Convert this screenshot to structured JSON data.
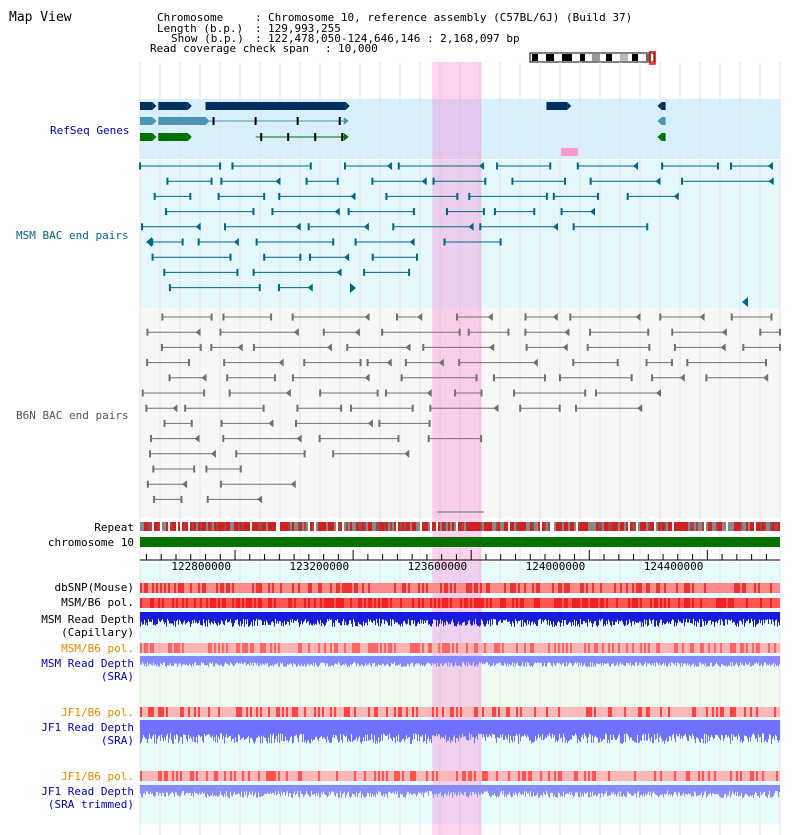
{
  "title": "Map View",
  "info": {
    "rows": [
      {
        "key": "Chromosome",
        "value": "Chromosome 10, reference assembly (C57BL/6J) (Build 37)"
      },
      {
        "key": "Length (b.p.)",
        "value": "129,993,255"
      },
      {
        "key": "Show (b.p.)",
        "value": "122,478,050-124,646,146 : 2,168,097 bp"
      },
      {
        "key": "Read coverage check span",
        "value": "10,000"
      }
    ]
  },
  "tracks": {
    "refseq": "RefSeq Genes",
    "msm_bac": "MSM BAC end pairs",
    "b6n_bac": "B6N BAC end pairs",
    "repeat": "Repeat",
    "chromosome": "chromosome 10",
    "dbsnp": "dbSNP(Mouse)",
    "msm_pol": "MSM/B6 pol.",
    "msm_depth_cap_1": "MSM Read Depth",
    "msm_depth_cap_2": "(Capillary)",
    "msm_pol_sra": "MSM/B6 pol.",
    "msm_depth_sra_1": "MSM Read Depth",
    "msm_depth_sra_2": "(SRA)",
    "jf1_pol": "JF1/B6 pol.",
    "jf1_depth_1": "JF1 Read Depth",
    "jf1_depth_2": "(SRA)",
    "jf1_pol_trim": "JF1/B6 pol.",
    "jf1_trim_1": "JF1 Read Depth",
    "jf1_trim_2": "(SRA trimmed)"
  },
  "axis": {
    "start_bp": 122478050,
    "end_bp": 124646146,
    "ticks": [
      "122800000",
      "123200000",
      "123600000",
      "124000000",
      "124400000"
    ],
    "tick_values": [
      122800000,
      123200000,
      123600000,
      124000000,
      124400000
    ],
    "highlight_bp": [
      123468000,
      123635000
    ]
  },
  "colors": {
    "refseq_dark": "#00305f",
    "refseq_mid": "#4e94b4",
    "refseq_green": "#007000",
    "msm": "#006688",
    "b6n": "#606060",
    "chromosome_bar": "#007000",
    "highlight": "#ff66cc",
    "snp": "#ff5050",
    "depth_dark": "#0000dd",
    "depth_light": "#7777ff",
    "label_blue": "#0000bb",
    "label_orange": "#ee8800",
    "label_teal": "#006688",
    "label_gray": "#555555"
  },
  "refseq_genes": [
    {
      "row": 0,
      "style": "dark",
      "start": 122478050,
      "end": 122520000,
      "dir": "+"
    },
    {
      "row": 0,
      "style": "dark",
      "start": 122540000,
      "end": 122640000,
      "dir": "+"
    },
    {
      "row": 0,
      "style": "dark",
      "start": 122700000,
      "end": 123175000,
      "dir": "+"
    },
    {
      "row": 0,
      "style": "dark",
      "start": 123855000,
      "end": 123925000,
      "dir": "+"
    },
    {
      "row": 0,
      "style": "dark",
      "start": 124245000,
      "end": 124258000,
      "dir": "-"
    },
    {
      "row": 1,
      "style": "mid",
      "start": 122478050,
      "end": 122520000,
      "dir": "+"
    },
    {
      "row": 1,
      "style": "mid",
      "start": 122540000,
      "end": 122700000,
      "dir": "+"
    },
    {
      "row": 1,
      "style": "line-mid",
      "start": 122700000,
      "end": 123175000,
      "dir": "+"
    },
    {
      "row": 1,
      "style": "mid",
      "start": 124245000,
      "end": 124258000,
      "dir": "-"
    },
    {
      "row": 2,
      "style": "green",
      "start": 122478050,
      "end": 122520000,
      "dir": "+"
    },
    {
      "row": 2,
      "style": "green",
      "start": 122540000,
      "end": 122640000,
      "dir": "+"
    },
    {
      "row": 2,
      "style": "line-green",
      "start": 122870000,
      "end": 123175000,
      "dir": "+"
    },
    {
      "row": 2,
      "style": "green",
      "start": 124245000,
      "end": 124258000,
      "dir": "-"
    }
  ]
}
